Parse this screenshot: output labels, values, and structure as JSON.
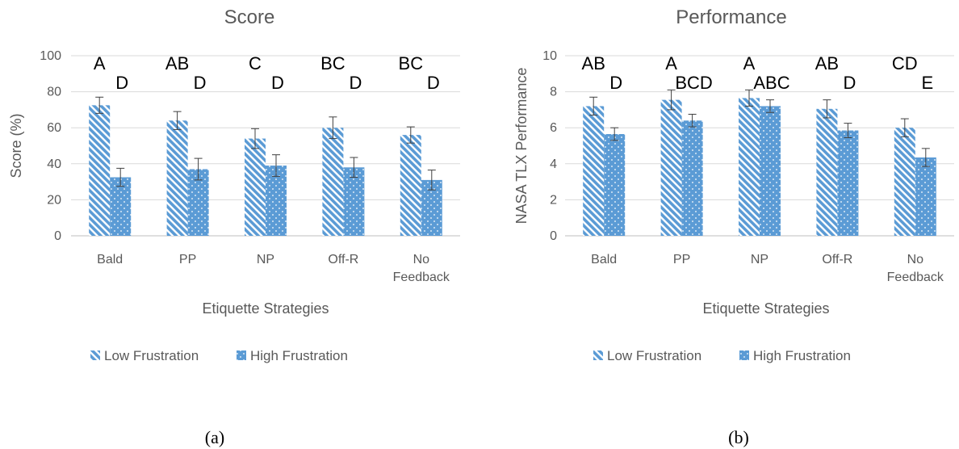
{
  "colors": {
    "bar": "#5B9BD5",
    "grid": "#D9D9D9",
    "axis": "#BFBFBF",
    "text": "#595959"
  },
  "chart_data": [
    {
      "type": "bar",
      "title": "Score",
      "ylabel": "Score (%)",
      "xlabel": "Etiquette Strategies",
      "ylim": [
        0,
        100
      ],
      "yticks": [
        0,
        20,
        40,
        60,
        80,
        100
      ],
      "yticklabels": [
        "0",
        "20",
        "40",
        "60",
        "80",
        "100"
      ],
      "categories": [
        [
          "Bald"
        ],
        [
          "PP"
        ],
        [
          "NP"
        ],
        [
          "Off-R"
        ],
        [
          "No",
          "Feedback"
        ]
      ],
      "series": [
        {
          "name": "Low Frustration",
          "pattern": "hatch",
          "values": [
            72.5,
            64,
            54,
            60,
            56
          ],
          "errors": [
            4.5,
            5,
            5.5,
            6,
            4.5
          ]
        },
        {
          "name": "High Frustration",
          "pattern": "dots",
          "values": [
            32.5,
            37,
            39,
            38,
            31
          ],
          "errors": [
            5,
            6,
            6,
            5.5,
            5.5
          ]
        }
      ],
      "annotations": [
        [
          "A",
          "D"
        ],
        [
          "AB",
          "D"
        ],
        [
          "C",
          "D"
        ],
        [
          "BC",
          "D"
        ],
        [
          "BC",
          "D"
        ]
      ],
      "legend": "bottom",
      "grid": true,
      "caption": "(a)"
    },
    {
      "type": "bar",
      "title": "Performance",
      "ylabel": "NASA TLX Performance",
      "xlabel": "Etiquette Strategies",
      "ylim": [
        0,
        10
      ],
      "yticks": [
        0,
        2,
        4,
        6,
        8,
        10
      ],
      "yticklabels": [
        "0",
        "2",
        "4",
        "6",
        "8",
        "10"
      ],
      "categories": [
        [
          "Bald"
        ],
        [
          "PP"
        ],
        [
          "NP"
        ],
        [
          "Off-R"
        ],
        [
          "No",
          "Feedback"
        ]
      ],
      "series": [
        {
          "name": "Low Frustration",
          "pattern": "hatch",
          "values": [
            7.2,
            7.55,
            7.65,
            7.05,
            6.0
          ],
          "errors": [
            0.5,
            0.55,
            0.45,
            0.5,
            0.5
          ]
        },
        {
          "name": "High Frustration",
          "pattern": "dots",
          "values": [
            5.65,
            6.4,
            7.2,
            5.85,
            4.35
          ],
          "errors": [
            0.35,
            0.35,
            0.35,
            0.4,
            0.5
          ]
        }
      ],
      "annotations": [
        [
          "AB",
          "D"
        ],
        [
          "A",
          "BCD"
        ],
        [
          "A",
          "ABC"
        ],
        [
          "AB",
          "D"
        ],
        [
          "CD",
          "E"
        ]
      ],
      "legend": "bottom",
      "grid": true,
      "caption": "(b)"
    }
  ]
}
